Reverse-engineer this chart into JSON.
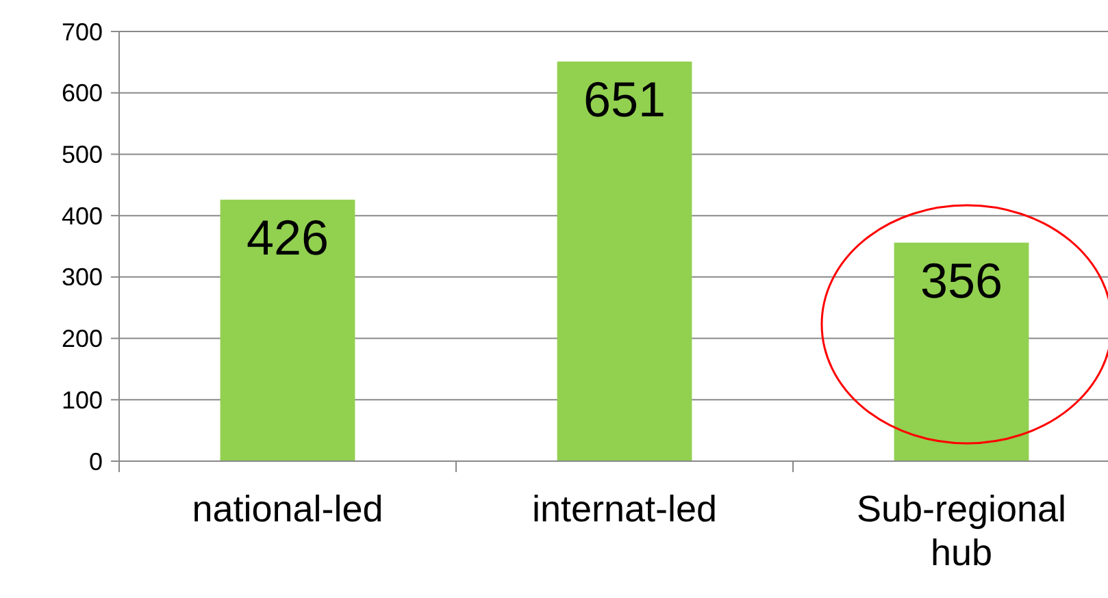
{
  "chart_data": {
    "type": "bar",
    "categories": [
      "national-led",
      "internat-led",
      "Sub-regional hub"
    ],
    "values": [
      426,
      651,
      356
    ],
    "color": "#92d050",
    "ylim": [
      0,
      700
    ],
    "yticks": [
      0,
      100,
      200,
      300,
      400,
      500,
      600,
      700
    ],
    "grid": "y",
    "data_labels": true
  }
}
